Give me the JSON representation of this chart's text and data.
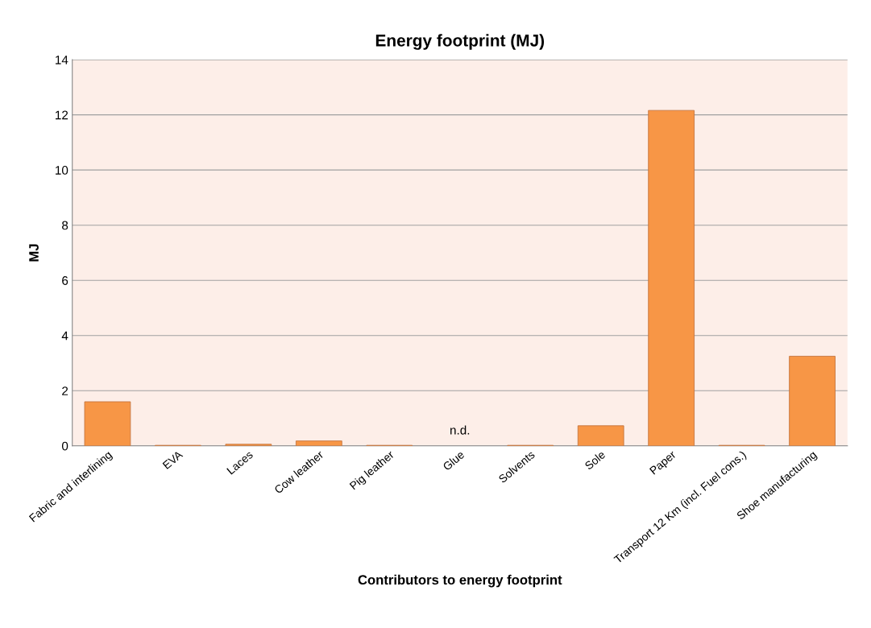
{
  "chart_data": {
    "type": "bar",
    "title": "Energy footprint (MJ)",
    "xlabel": "Contributors to energy footprint",
    "ylabel": "MJ",
    "categories": [
      "Fabric and interlining",
      "EVA",
      "Laces",
      "Cow leather",
      "Pig leather",
      "Glue",
      "Solvents",
      "Sole",
      "Paper",
      "Transport 12 Km (incl. Fuel cons.)",
      "Shoe manufacturing"
    ],
    "values": [
      1.6,
      0.02,
      0.06,
      0.18,
      0.02,
      null,
      0.02,
      0.73,
      12.16,
      0.02,
      3.25
    ],
    "color": "#f79646",
    "annotations": [
      "n.d."
    ],
    "ylim": [
      0,
      14
    ],
    "yticks": [
      0,
      2,
      4,
      6,
      8,
      10,
      12,
      14
    ],
    "grid": "y",
    "legend": false
  }
}
